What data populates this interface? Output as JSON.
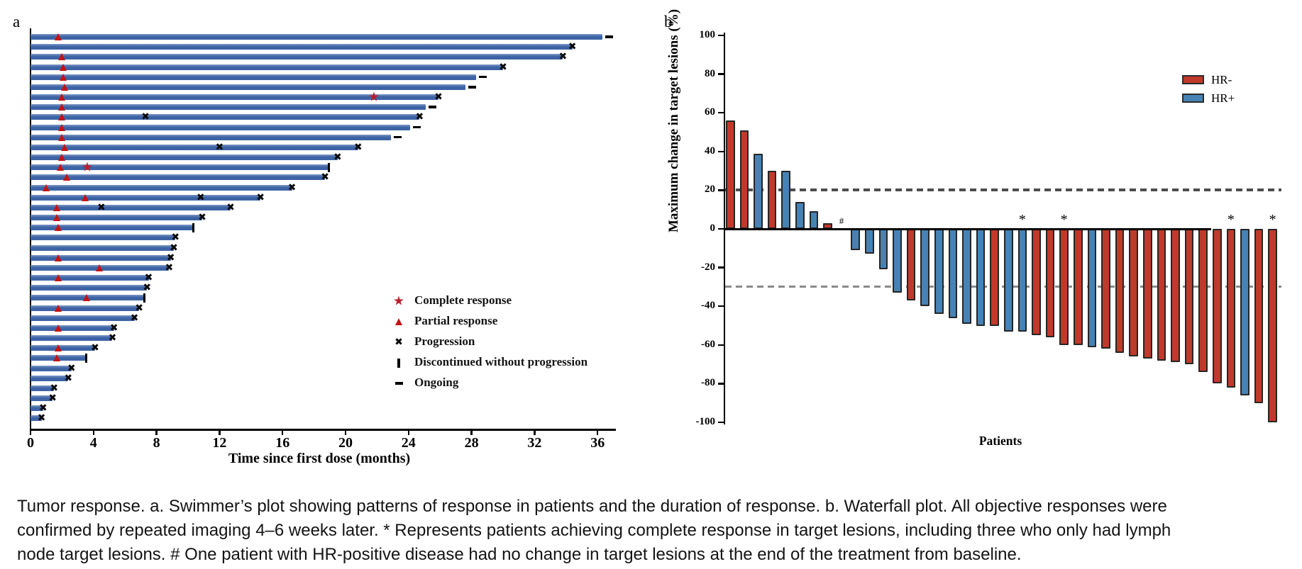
{
  "figure": {
    "panel_a_label": "a",
    "panel_b_label": "b"
  },
  "colors": {
    "swimmer_bar": "#3d63a5",
    "marker_red": "#c41414",
    "star_red": "#bb1e2d",
    "hr_negative": "#c0392b",
    "hr_positive": "#4682b4",
    "bar_border": "#262626",
    "dash_upper_line": "#4d4d4d",
    "dash_lower_line": "#8a8a8a"
  },
  "chart_data": [
    {
      "type": "swimmer",
      "panel": "a",
      "xlabel": "Time since first dose (months)",
      "xticks": [
        0,
        4,
        8,
        12,
        16,
        20,
        24,
        28,
        32,
        36
      ],
      "xlim": [
        0,
        37
      ],
      "legend_position": "right-middle",
      "legend": [
        {
          "marker": "star",
          "label": "Complete response"
        },
        {
          "marker": "triangle",
          "label": "Partial response"
        },
        {
          "marker": "x",
          "label": "Progression"
        },
        {
          "marker": "bar",
          "label": "Discontinued without progression"
        },
        {
          "marker": "dash",
          "label": "Ongoing"
        }
      ],
      "patients": [
        {
          "bar": 36.3,
          "pr": 1.8,
          "cr": null,
          "xs": [],
          "end": "ongoing"
        },
        {
          "bar": 34.4,
          "pr": null,
          "cr": null,
          "xs": [],
          "end": "x"
        },
        {
          "bar": 33.8,
          "pr": 2.0,
          "cr": null,
          "xs": [],
          "end": "x"
        },
        {
          "bar": 30.0,
          "pr": 2.1,
          "cr": null,
          "xs": [],
          "end": "x"
        },
        {
          "bar": 28.3,
          "pr": 2.1,
          "cr": null,
          "xs": [],
          "end": "ongoing"
        },
        {
          "bar": 27.6,
          "pr": 2.2,
          "cr": null,
          "xs": [],
          "end": "ongoing"
        },
        {
          "bar": 25.9,
          "pr": 2.0,
          "cr": 21.8,
          "xs": [],
          "end": "x"
        },
        {
          "bar": 25.1,
          "pr": 2.0,
          "cr": null,
          "xs": [],
          "end": "ongoing"
        },
        {
          "bar": 24.7,
          "pr": 2.0,
          "cr": null,
          "xs": [
            7.3
          ],
          "end": "x"
        },
        {
          "bar": 24.1,
          "pr": 2.0,
          "cr": null,
          "xs": [],
          "end": "ongoing"
        },
        {
          "bar": 22.9,
          "pr": 2.0,
          "cr": null,
          "xs": [],
          "end": "ongoing"
        },
        {
          "bar": 20.8,
          "pr": 2.2,
          "cr": null,
          "xs": [
            12.0
          ],
          "end": "x"
        },
        {
          "bar": 19.5,
          "pr": 2.0,
          "cr": null,
          "xs": [],
          "end": "x"
        },
        {
          "bar": 18.9,
          "pr": 1.9,
          "cr": 3.6,
          "xs": [],
          "end": "disc"
        },
        {
          "bar": 18.7,
          "pr": 2.3,
          "cr": null,
          "xs": [],
          "end": "x"
        },
        {
          "bar": 16.6,
          "pr": 1.0,
          "cr": null,
          "xs": [],
          "end": "x"
        },
        {
          "bar": 14.6,
          "pr": 3.5,
          "cr": null,
          "xs": [
            10.8
          ],
          "end": "x"
        },
        {
          "bar": 12.7,
          "pr": 1.7,
          "cr": null,
          "xs": [
            4.5
          ],
          "end": "x"
        },
        {
          "bar": 10.9,
          "pr": 1.7,
          "cr": null,
          "xs": [],
          "end": "x"
        },
        {
          "bar": 10.3,
          "pr": 1.8,
          "cr": null,
          "xs": [],
          "end": "disc"
        },
        {
          "bar": 9.2,
          "pr": null,
          "cr": null,
          "xs": [],
          "end": "x"
        },
        {
          "bar": 9.1,
          "pr": null,
          "cr": null,
          "xs": [],
          "end": "x"
        },
        {
          "bar": 8.9,
          "pr": 1.8,
          "cr": null,
          "xs": [],
          "end": "x"
        },
        {
          "bar": 8.8,
          "pr": 4.4,
          "cr": null,
          "xs": [],
          "end": "x"
        },
        {
          "bar": 7.5,
          "pr": 1.8,
          "cr": null,
          "xs": [],
          "end": "x"
        },
        {
          "bar": 7.4,
          "pr": null,
          "cr": null,
          "xs": [],
          "end": "x"
        },
        {
          "bar": 7.2,
          "pr": 3.6,
          "cr": null,
          "xs": [],
          "end": "disc"
        },
        {
          "bar": 6.9,
          "pr": 1.8,
          "cr": null,
          "xs": [],
          "end": "x"
        },
        {
          "bar": 6.6,
          "pr": null,
          "cr": null,
          "xs": [],
          "end": "x"
        },
        {
          "bar": 5.3,
          "pr": 1.8,
          "cr": null,
          "xs": [],
          "end": "x"
        },
        {
          "bar": 5.2,
          "pr": null,
          "cr": null,
          "xs": [],
          "end": "x"
        },
        {
          "bar": 4.1,
          "pr": 1.8,
          "cr": null,
          "xs": [],
          "end": "x"
        },
        {
          "bar": 3.5,
          "pr": 1.7,
          "cr": null,
          "xs": [],
          "end": "disc"
        },
        {
          "bar": 2.6,
          "pr": null,
          "cr": null,
          "xs": [],
          "end": "x"
        },
        {
          "bar": 2.4,
          "pr": null,
          "cr": null,
          "xs": [],
          "end": "x"
        },
        {
          "bar": 1.5,
          "pr": null,
          "cr": null,
          "xs": [],
          "end": "x"
        },
        {
          "bar": 1.4,
          "pr": null,
          "cr": null,
          "xs": [],
          "end": "x"
        },
        {
          "bar": 0.8,
          "pr": null,
          "cr": null,
          "xs": [],
          "end": "x"
        },
        {
          "bar": 0.7,
          "pr": null,
          "cr": null,
          "xs": [],
          "end": "x"
        }
      ]
    },
    {
      "type": "waterfall-bar",
      "panel": "b",
      "ylabel": "Maximum change in target lesions (%)",
      "xlabel": "Patients",
      "ylim": [
        -100,
        100
      ],
      "yticks": [
        100,
        80,
        60,
        40,
        20,
        0,
        -20,
        -40,
        -60,
        -80,
        -100
      ],
      "reference_lines": [
        20,
        -30
      ],
      "legend_position": "top-right",
      "legend": [
        {
          "label": "HR-",
          "group": "HR-",
          "color": "#c0392b"
        },
        {
          "label": "HR+",
          "group": "HR+",
          "color": "#4682b4"
        }
      ],
      "patients": [
        {
          "v": 56,
          "group": "HR-",
          "mark": null
        },
        {
          "v": 51,
          "group": "HR-",
          "mark": null
        },
        {
          "v": 39,
          "group": "HR+",
          "mark": null
        },
        {
          "v": 30,
          "group": "HR-",
          "mark": null
        },
        {
          "v": 30,
          "group": "HR+",
          "mark": null
        },
        {
          "v": 14,
          "group": "HR+",
          "mark": null
        },
        {
          "v": 9,
          "group": "HR+",
          "mark": null
        },
        {
          "v": 3,
          "group": "HR-",
          "mark": null
        },
        {
          "v": 0,
          "group": "HR+",
          "mark": "#"
        },
        {
          "v": -11,
          "group": "HR+",
          "mark": null
        },
        {
          "v": -13,
          "group": "HR+",
          "mark": null
        },
        {
          "v": -21,
          "group": "HR+",
          "mark": null
        },
        {
          "v": -33,
          "group": "HR+",
          "mark": null
        },
        {
          "v": -37,
          "group": "HR-",
          "mark": null
        },
        {
          "v": -40,
          "group": "HR+",
          "mark": null
        },
        {
          "v": -44,
          "group": "HR+",
          "mark": null
        },
        {
          "v": -46,
          "group": "HR+",
          "mark": null
        },
        {
          "v": -49,
          "group": "HR+",
          "mark": null
        },
        {
          "v": -50,
          "group": "HR+",
          "mark": null
        },
        {
          "v": -50,
          "group": "HR-",
          "mark": null
        },
        {
          "v": -53,
          "group": "HR+",
          "mark": null
        },
        {
          "v": -53,
          "group": "HR+",
          "mark": "*"
        },
        {
          "v": -55,
          "group": "HR-",
          "mark": null
        },
        {
          "v": -56,
          "group": "HR-",
          "mark": null
        },
        {
          "v": -60,
          "group": "HR-",
          "mark": "*"
        },
        {
          "v": -60,
          "group": "HR-",
          "mark": null
        },
        {
          "v": -61,
          "group": "HR+",
          "mark": null
        },
        {
          "v": -62,
          "group": "HR-",
          "mark": null
        },
        {
          "v": -64,
          "group": "HR-",
          "mark": null
        },
        {
          "v": -66,
          "group": "HR-",
          "mark": null
        },
        {
          "v": -67,
          "group": "HR-",
          "mark": null
        },
        {
          "v": -68,
          "group": "HR-",
          "mark": null
        },
        {
          "v": -69,
          "group": "HR-",
          "mark": null
        },
        {
          "v": -70,
          "group": "HR-",
          "mark": null
        },
        {
          "v": -74,
          "group": "HR-",
          "mark": null
        },
        {
          "v": -80,
          "group": "HR-",
          "mark": null
        },
        {
          "v": -82,
          "group": "HR-",
          "mark": "*"
        },
        {
          "v": -86,
          "group": "HR+",
          "mark": null
        },
        {
          "v": -90,
          "group": "HR-",
          "mark": null
        },
        {
          "v": -100,
          "group": "HR-",
          "mark": "*"
        }
      ]
    }
  ],
  "caption": {
    "lines": [
      "Tumor response. a. Swimmer’s plot showing patterns of response in patients and the duration of response. b. Waterfall plot. All objective responses were",
      "confirmed by repeated imaging 4–6 weeks later. * Represents patients achieving complete response in target lesions, including three who only had lymph",
      "node target lesions. # One patient with HR-positive disease had no change in target lesions at the end of the treatment from baseline."
    ]
  }
}
